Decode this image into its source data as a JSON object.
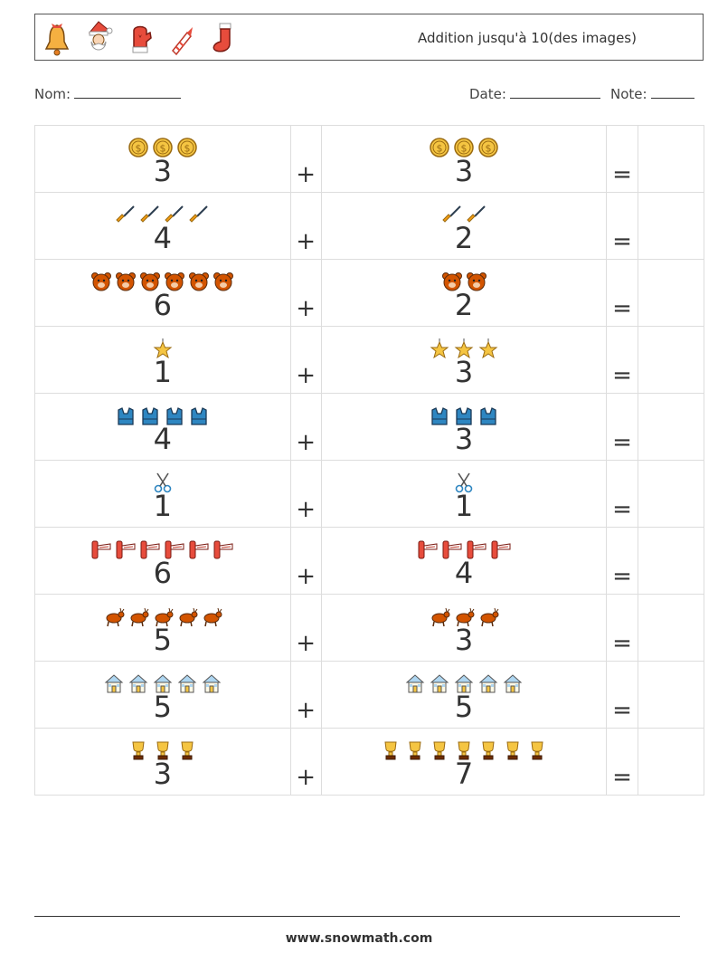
{
  "header": {
    "icons": [
      "bell-icon",
      "santa-icon",
      "mitten-icon",
      "firework-rocket-icon",
      "stocking-icon"
    ],
    "title": "Addition jusqu'à 10(des images)"
  },
  "meta": {
    "name_label": "Nom:",
    "date_label": "Date:",
    "grade_label": "Note:"
  },
  "operators": {
    "plus": "+",
    "equals": "="
  },
  "rows": [
    {
      "icon": "coin-icon",
      "a": 3,
      "b": 3
    },
    {
      "icon": "broom-icon",
      "a": 4,
      "b": 2
    },
    {
      "icon": "bear-face-icon",
      "a": 6,
      "b": 2
    },
    {
      "icon": "star-ornament-icon",
      "a": 1,
      "b": 3
    },
    {
      "icon": "vest-icon",
      "a": 4,
      "b": 3
    },
    {
      "icon": "scissors-icon",
      "a": 1,
      "b": 1
    },
    {
      "icon": "whistle-icon",
      "a": 6,
      "b": 4
    },
    {
      "icon": "reindeer-icon",
      "a": 5,
      "b": 3
    },
    {
      "icon": "house-icon",
      "a": 5,
      "b": 5
    },
    {
      "icon": "trophy-icon",
      "a": 3,
      "b": 7
    }
  ],
  "colors": {
    "border": "#dddddd",
    "text": "#333333"
  },
  "footer": {
    "url": "www.snowmath.com"
  }
}
